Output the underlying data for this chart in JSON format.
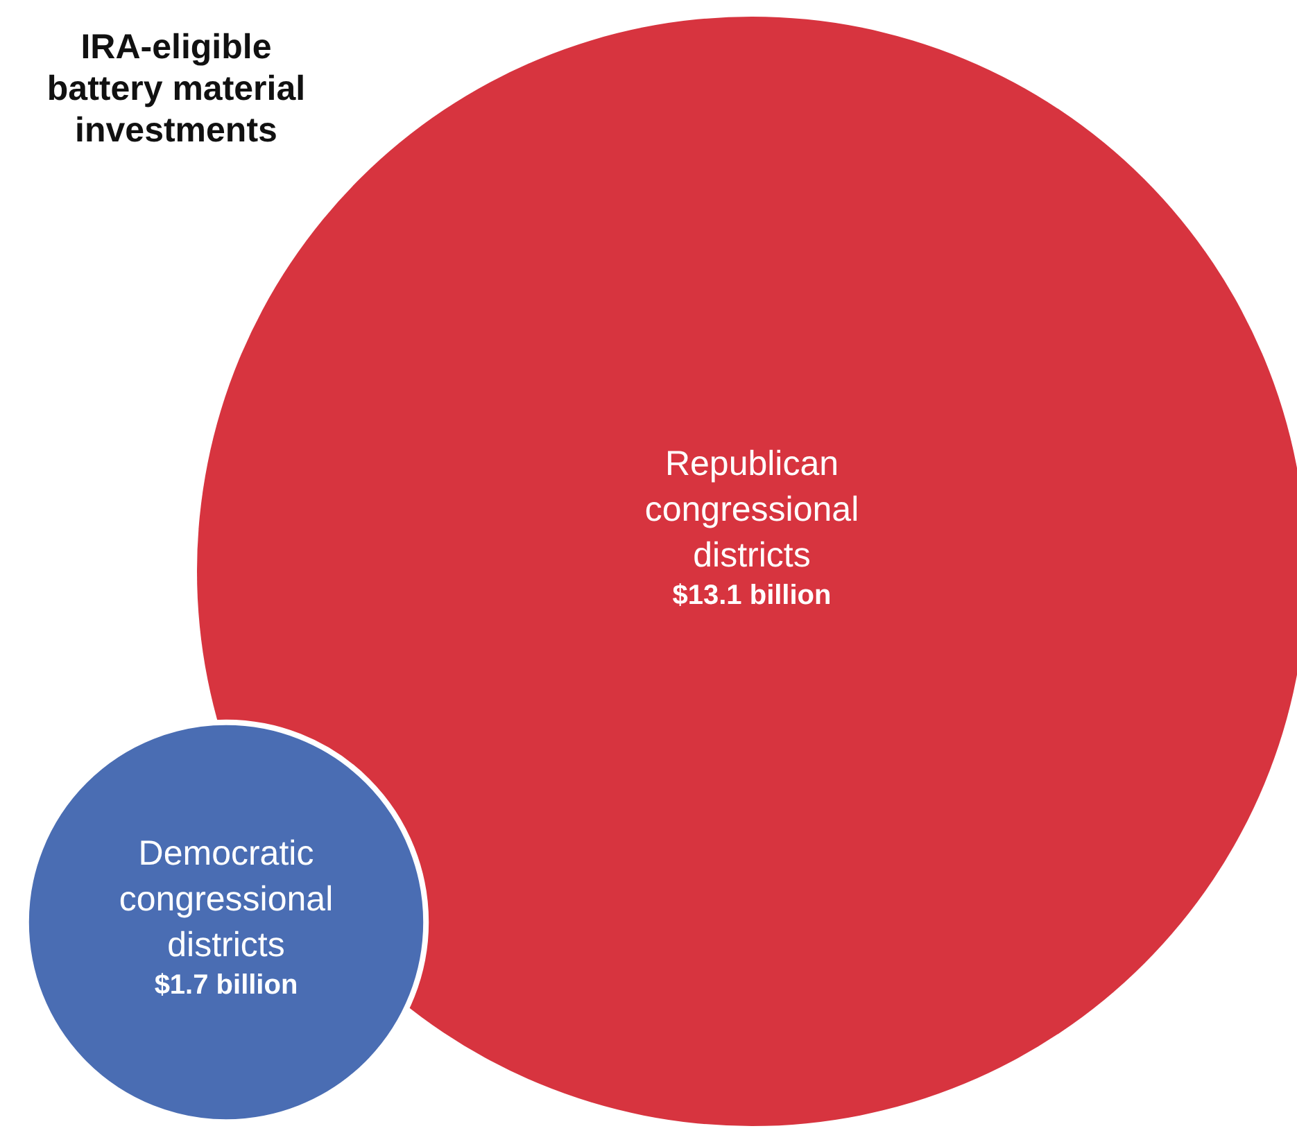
{
  "chart_data": {
    "type": "other",
    "title": "IRA-eligible battery material investments",
    "categories": [
      "Republican congressional districts",
      "Democratic congressional districts"
    ],
    "values": [
      13.1,
      1.7
    ],
    "value_labels": [
      "$13.1 billion",
      "$1.7 billion"
    ],
    "colors": [
      "#d7343f",
      "#4a6db3"
    ]
  }
}
